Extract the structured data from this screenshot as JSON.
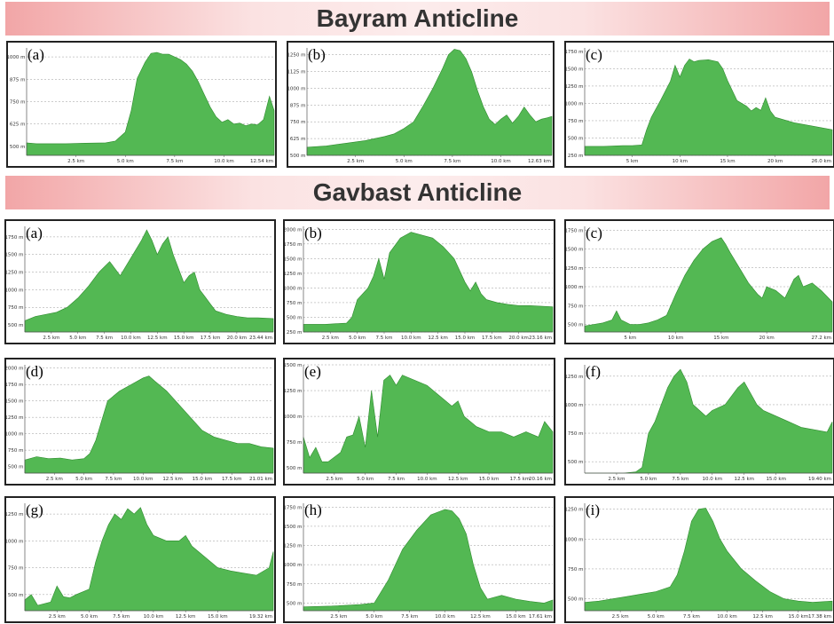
{
  "titles": {
    "bayram": "Bayram Anticline",
    "gavbast": "Gavbast Anticline"
  },
  "colors": {
    "fill": "#53b853",
    "stroke": "#2e8b2e",
    "grid": "#9a9a9a"
  },
  "chart_data": [
    {
      "id": "b_a",
      "group": "bayram",
      "label": "(a)",
      "type": "area",
      "xlim": [
        0,
        12.54
      ],
      "xticks": [
        2.5,
        5,
        7.5,
        10
      ],
      "xtick_labels": [
        "2.5 km",
        "5.0 km",
        "7.5 km",
        "10.0 km"
      ],
      "xend_label": "12.54 km",
      "ylim": [
        450,
        1050
      ],
      "yticks": [
        500,
        625,
        750,
        875,
        1000
      ],
      "ytick_labels": [
        "500 m",
        "625 m",
        "750 m",
        "875 m",
        "1000 m"
      ],
      "x": [
        0,
        0.5,
        1,
        2,
        3,
        4,
        4.5,
        5,
        5.3,
        5.6,
        6,
        6.3,
        6.6,
        6.9,
        7.2,
        7.5,
        7.8,
        8.1,
        8.4,
        8.7,
        9,
        9.3,
        9.6,
        9.9,
        10.2,
        10.5,
        10.8,
        11.1,
        11.4,
        11.7,
        12,
        12.3,
        12.54
      ],
      "y": [
        520,
        515,
        515,
        515,
        518,
        520,
        530,
        580,
        700,
        880,
        970,
        1020,
        1025,
        1015,
        1015,
        1000,
        985,
        960,
        920,
        860,
        790,
        720,
        665,
        635,
        650,
        625,
        630,
        615,
        625,
        620,
        650,
        780,
        700
      ]
    },
    {
      "id": "b_b",
      "group": "bayram",
      "label": "(b)",
      "type": "area",
      "xlim": [
        0,
        12.63
      ],
      "xticks": [
        2.5,
        5,
        7.5,
        10
      ],
      "xtick_labels": [
        "2.5 km",
        "5.0 km",
        "7.5 km",
        "10.0 km"
      ],
      "xend_label": "12.63 km",
      "ylim": [
        500,
        1300
      ],
      "yticks": [
        500,
        625,
        750,
        875,
        1000,
        1125,
        1250
      ],
      "ytick_labels": [
        "500 m",
        "625 m",
        "750 m",
        "875 m",
        "1000 m",
        "1125 m",
        "1250 m"
      ],
      "x": [
        0,
        1,
        2,
        3,
        4,
        4.5,
        5,
        5.5,
        6,
        6.5,
        7,
        7.3,
        7.6,
        7.9,
        8.2,
        8.5,
        8.8,
        9.1,
        9.4,
        9.7,
        10,
        10.3,
        10.6,
        10.9,
        11.2,
        11.5,
        11.8,
        12.1,
        12.4,
        12.63
      ],
      "y": [
        560,
        570,
        590,
        610,
        640,
        660,
        700,
        750,
        870,
        1000,
        1150,
        1250,
        1290,
        1280,
        1220,
        1120,
        980,
        860,
        770,
        730,
        770,
        800,
        740,
        790,
        860,
        800,
        750,
        770,
        780,
        790
      ]
    },
    {
      "id": "b_c",
      "group": "bayram",
      "label": "(c)",
      "type": "area",
      "xlim": [
        0,
        26
      ],
      "xticks": [
        5,
        10,
        15,
        20
      ],
      "xtick_labels": [
        "5 km",
        "10 km",
        "15 km",
        "20 km"
      ],
      "xend_label": "26.0 km",
      "ylim": [
        250,
        1800
      ],
      "yticks": [
        250,
        500,
        750,
        1000,
        1250,
        1500,
        1750
      ],
      "ytick_labels": [
        "250 m",
        "500 m",
        "750 m",
        "1000 m",
        "1250 m",
        "1500 m",
        "1750 m"
      ],
      "x": [
        0,
        2,
        4,
        5,
        6,
        6.5,
        7,
        8,
        9,
        9.5,
        10,
        10.5,
        11,
        11.5,
        12,
        13,
        14,
        14.5,
        15,
        16,
        17,
        17.5,
        18,
        18.5,
        19,
        19.5,
        20,
        21,
        22,
        24,
        26
      ],
      "y": [
        380,
        380,
        390,
        390,
        400,
        620,
        800,
        1050,
        1320,
        1550,
        1380,
        1550,
        1640,
        1600,
        1620,
        1630,
        1600,
        1500,
        1330,
        1040,
        960,
        890,
        940,
        900,
        1080,
        890,
        800,
        760,
        720,
        670,
        620
      ]
    },
    {
      "id": "g_a",
      "group": "gavbast",
      "label": "(a)",
      "type": "area",
      "xlim": [
        0,
        23.44
      ],
      "xticks": [
        2.5,
        5,
        7.5,
        10,
        12.5,
        15,
        17.5,
        20
      ],
      "xtick_labels": [
        "2.5 km",
        "5.0 km",
        "7.5 km",
        "10.0 km",
        "12.5 km",
        "15.0 km",
        "17.5 km",
        "20.0 km"
      ],
      "xend_label": "23.44 km",
      "ylim": [
        400,
        1900
      ],
      "yticks": [
        500,
        750,
        1000,
        1250,
        1500,
        1750
      ],
      "ytick_labels": [
        "500 m",
        "750 m",
        "1000 m",
        "1250 m",
        "1500 m",
        "1750 m"
      ],
      "x": [
        0,
        1,
        2,
        3,
        4,
        5,
        6,
        7,
        8,
        9,
        10,
        11,
        11.5,
        12,
        12.5,
        13,
        13.5,
        14,
        14.5,
        15,
        15.5,
        16,
        16.5,
        17,
        17.5,
        18,
        19,
        20,
        21,
        22,
        23.44
      ],
      "y": [
        560,
        620,
        650,
        680,
        750,
        880,
        1050,
        1250,
        1400,
        1200,
        1450,
        1700,
        1850,
        1700,
        1500,
        1650,
        1750,
        1500,
        1300,
        1100,
        1200,
        1250,
        1000,
        900,
        800,
        700,
        650,
        620,
        600,
        600,
        590
      ]
    },
    {
      "id": "g_b",
      "group": "gavbast",
      "label": "(b)",
      "type": "area",
      "xlim": [
        0,
        23.16
      ],
      "xticks": [
        2.5,
        5,
        7.5,
        10,
        12.5,
        15,
        17.5,
        20
      ],
      "xtick_labels": [
        "2.5 km",
        "5.0 km",
        "7.5 km",
        "10.0 km",
        "12.5 km",
        "15.0 km",
        "17.5 km",
        "20.0 km"
      ],
      "xend_label": "23.16 km",
      "ylim": [
        250,
        2050
      ],
      "yticks": [
        250,
        500,
        750,
        1000,
        1250,
        1500,
        1750,
        2000
      ],
      "ytick_labels": [
        "250 m",
        "500 m",
        "750 m",
        "1000 m",
        "1250 m",
        "1500 m",
        "1750 m",
        "2000 m"
      ],
      "x": [
        0,
        2,
        3,
        4,
        4.5,
        5,
        6,
        6.5,
        7,
        7.5,
        8,
        9,
        10,
        11,
        12,
        13,
        14,
        15,
        15.5,
        16,
        16.5,
        17,
        18,
        19,
        20,
        21,
        22,
        23.16
      ],
      "y": [
        380,
        380,
        390,
        400,
        500,
        800,
        1000,
        1200,
        1500,
        1150,
        1600,
        1850,
        1950,
        1900,
        1850,
        1700,
        1500,
        1100,
        950,
        1100,
        900,
        800,
        750,
        720,
        700,
        700,
        690,
        680
      ]
    },
    {
      "id": "g_c",
      "group": "gavbast",
      "label": "(c)",
      "type": "area",
      "xlim": [
        0,
        27.2
      ],
      "xticks": [
        5,
        10,
        15,
        20
      ],
      "xtick_labels": [
        "5 km",
        "10 km",
        "15 km",
        "20 km"
      ],
      "xend_label": "27.2 km",
      "ylim": [
        400,
        1800
      ],
      "yticks": [
        500,
        750,
        1000,
        1250,
        1500,
        1750
      ],
      "ytick_labels": [
        "500 m",
        "750 m",
        "1000 m",
        "1250 m",
        "1500 m",
        "1750 m"
      ],
      "x": [
        0,
        1,
        2,
        3,
        3.5,
        4,
        5,
        6,
        7,
        8,
        9,
        10,
        11,
        12,
        13,
        14,
        15,
        15.5,
        16,
        17,
        18,
        19,
        19.5,
        20,
        21,
        22,
        23,
        23.5,
        24,
        25,
        26,
        27.2
      ],
      "y": [
        480,
        500,
        520,
        560,
        680,
        560,
        500,
        500,
        520,
        560,
        620,
        900,
        1150,
        1350,
        1500,
        1600,
        1650,
        1560,
        1450,
        1250,
        1050,
        900,
        850,
        1000,
        950,
        850,
        1100,
        1150,
        1000,
        1050,
        950,
        800
      ]
    },
    {
      "id": "g_d",
      "group": "gavbast",
      "label": "(d)",
      "type": "area",
      "xlim": [
        0,
        21.01
      ],
      "xticks": [
        2.5,
        5,
        7.5,
        10,
        12.5,
        15,
        17.5
      ],
      "xtick_labels": [
        "2.5 km",
        "5.0 km",
        "7.5 km",
        "10.0 km",
        "12.5 km",
        "15.0 km",
        "17.5 km"
      ],
      "xend_label": "21.01 km",
      "ylim": [
        400,
        2050
      ],
      "yticks": [
        500,
        750,
        1000,
        1250,
        1500,
        1750,
        2000
      ],
      "ytick_labels": [
        "500 m",
        "750 m",
        "1000 m",
        "1250 m",
        "1500 m",
        "1750 m",
        "2000 m"
      ],
      "x": [
        0,
        1,
        2,
        3,
        4,
        5,
        5.5,
        6,
        6.5,
        7,
        8,
        9,
        10,
        10.5,
        11,
        12,
        13,
        14,
        15,
        16,
        17,
        18,
        19,
        20,
        21.01
      ],
      "y": [
        600,
        650,
        620,
        630,
        600,
        620,
        700,
        900,
        1200,
        1500,
        1650,
        1750,
        1850,
        1880,
        1800,
        1650,
        1450,
        1250,
        1050,
        950,
        900,
        850,
        850,
        800,
        780
      ]
    },
    {
      "id": "g_e",
      "group": "gavbast",
      "label": "(e)",
      "type": "area",
      "xlim": [
        0,
        20.16
      ],
      "xticks": [
        2.5,
        5,
        7.5,
        10,
        12.5,
        15,
        17.5
      ],
      "xtick_labels": [
        "2.5 km",
        "5.0 km",
        "7.5 km",
        "10.0 km",
        "12.5 km",
        "15.0 km",
        "17.5 km"
      ],
      "xend_label": "20.16 km",
      "ylim": [
        450,
        1500
      ],
      "yticks": [
        500,
        750,
        1000,
        1250,
        1500
      ],
      "ytick_labels": [
        "500 m",
        "750 m",
        "1000 m",
        "1250 m",
        "1500 m"
      ],
      "x": [
        0,
        0.5,
        1,
        1.5,
        2,
        3,
        3.5,
        4,
        4.5,
        5,
        5.5,
        6,
        6.5,
        7,
        7.5,
        8,
        9,
        10,
        11,
        12,
        12.5,
        13,
        14,
        15,
        16,
        17,
        18,
        19,
        19.5,
        20.16
      ],
      "y": [
        800,
        600,
        700,
        560,
        560,
        650,
        800,
        820,
        1000,
        700,
        1250,
        800,
        1350,
        1400,
        1300,
        1400,
        1350,
        1300,
        1200,
        1100,
        1150,
        1000,
        900,
        850,
        850,
        800,
        850,
        800,
        950,
        850
      ]
    },
    {
      "id": "g_f",
      "group": "gavbast",
      "label": "(f)",
      "type": "area",
      "xlim": [
        0,
        19.4
      ],
      "xticks": [
        2.5,
        5,
        7.5,
        10,
        12.5,
        15
      ],
      "xtick_labels": [
        "2.5 km",
        "5.0 km",
        "7.5 km",
        "10.0 km",
        "12.5 km",
        "15.0 km"
      ],
      "xend_label": "19.40 km",
      "ylim": [
        400,
        1350
      ],
      "yticks": [
        500,
        750,
        1000,
        1250
      ],
      "ytick_labels": [
        "500 m",
        "750 m",
        "1000 m",
        "1250 m"
      ],
      "x": [
        0,
        2,
        3,
        4,
        4.5,
        5,
        5.5,
        6,
        6.5,
        7,
        7.5,
        8,
        8.5,
        9,
        9.5,
        10,
        11,
        12,
        12.5,
        13,
        13.5,
        14,
        15,
        16,
        17,
        18,
        19,
        19.4
      ],
      "y": [
        400,
        400,
        400,
        410,
        450,
        750,
        850,
        1000,
        1150,
        1250,
        1310,
        1200,
        1000,
        950,
        900,
        950,
        1000,
        1150,
        1200,
        1100,
        1000,
        950,
        900,
        850,
        800,
        780,
        760,
        850
      ]
    },
    {
      "id": "g_g",
      "group": "gavbast",
      "label": "(g)",
      "type": "area",
      "xlim": [
        0,
        19.32
      ],
      "xticks": [
        2.5,
        5,
        7.5,
        10,
        12.5,
        15
      ],
      "xtick_labels": [
        "2.5 km",
        "5.0 km",
        "7.5 km",
        "10.0 km",
        "12.5 km",
        "15.0 km"
      ],
      "xend_label": "19.32 km",
      "ylim": [
        350,
        1350
      ],
      "yticks": [
        500,
        750,
        1000,
        1250
      ],
      "ytick_labels": [
        "500 m",
        "750 m",
        "1000 m",
        "1250 m"
      ],
      "x": [
        0,
        0.5,
        1,
        2,
        2.5,
        3,
        3.5,
        4,
        5,
        5.5,
        6,
        6.5,
        7,
        7.5,
        8,
        8.5,
        9,
        9.5,
        10,
        11,
        12,
        12.5,
        13,
        14,
        15,
        16,
        17,
        18,
        19,
        19.32
      ],
      "y": [
        450,
        500,
        400,
        430,
        580,
        480,
        470,
        500,
        550,
        800,
        1000,
        1150,
        1250,
        1200,
        1300,
        1250,
        1310,
        1150,
        1050,
        1000,
        1000,
        1050,
        950,
        850,
        750,
        720,
        700,
        680,
        750,
        900
      ]
    },
    {
      "id": "g_h",
      "group": "gavbast",
      "label": "(h)",
      "type": "area",
      "xlim": [
        0,
        17.61
      ],
      "xticks": [
        2.5,
        5,
        7.5,
        10,
        12.5,
        15
      ],
      "xtick_labels": [
        "2.5 km",
        "5.0 km",
        "7.5 km",
        "10.0 km",
        "12.5 km",
        "15.0 km"
      ],
      "xend_label": "17.61 km",
      "ylim": [
        400,
        1800
      ],
      "yticks": [
        500,
        750,
        1000,
        1250,
        1500,
        1750
      ],
      "ytick_labels": [
        "500 m",
        "750 m",
        "1000 m",
        "1250 m",
        "1500 m",
        "1750 m"
      ],
      "x": [
        0,
        2,
        4,
        5,
        6,
        7,
        8,
        9,
        10,
        10.5,
        11,
        11.5,
        12,
        12.5,
        13,
        14,
        15,
        16,
        17,
        17.61
      ],
      "y": [
        450,
        460,
        480,
        500,
        800,
        1200,
        1450,
        1650,
        1720,
        1700,
        1600,
        1400,
        1000,
        700,
        550,
        600,
        550,
        520,
        500,
        540
      ]
    },
    {
      "id": "g_i",
      "group": "gavbast",
      "label": "(i)",
      "type": "area",
      "xlim": [
        0,
        17.38
      ],
      "xticks": [
        2.5,
        5,
        7.5,
        10,
        12.5,
        15
      ],
      "xtick_labels": [
        "2.5 km",
        "5.0 km",
        "7.5 km",
        "10.0 km",
        "12.5 km",
        "15.0 km"
      ],
      "xend_label": "17.38 km",
      "ylim": [
        400,
        1300
      ],
      "yticks": [
        500,
        750,
        1000,
        1250
      ],
      "ytick_labels": [
        "500 m",
        "750 m",
        "1000 m",
        "1250 m"
      ],
      "x": [
        0,
        1,
        2,
        3,
        4,
        5,
        6,
        6.5,
        7,
        7.5,
        8,
        8.5,
        9,
        9.5,
        10,
        11,
        12,
        13,
        14,
        15,
        16,
        17.38
      ],
      "y": [
        470,
        480,
        500,
        520,
        540,
        560,
        600,
        700,
        900,
        1150,
        1250,
        1260,
        1150,
        1000,
        900,
        750,
        650,
        560,
        500,
        480,
        470,
        480
      ]
    }
  ]
}
